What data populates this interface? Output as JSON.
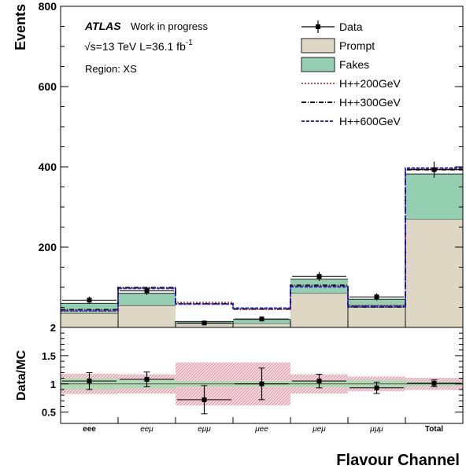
{
  "chart_data": {
    "type": "bar",
    "stacked": true,
    "categories": [
      "eee",
      "eeμ",
      "eμμ",
      "μee",
      "μeμ",
      "μμμ",
      "Total"
    ],
    "category_styles": [
      "bold",
      "italic",
      "italic",
      "italic",
      "italic",
      "italic",
      "bold"
    ],
    "xlabel": "Flavour Channel",
    "ylabel": "Events",
    "ylim": [
      0,
      800
    ],
    "yticks": [
      200,
      400,
      600,
      800
    ],
    "stack": [
      {
        "name": "Prompt",
        "color": "#ddd7c4",
        "values": [
          35,
          55,
          10,
          10,
          85,
          50,
          270
        ]
      },
      {
        "name": "Fakes",
        "color": "#94cfb1",
        "values": [
          25,
          30,
          5,
          10,
          35,
          20,
          112
        ]
      }
    ],
    "signals": [
      {
        "name": "H++200GeV",
        "color": "#cc4a4a",
        "dash": "2,2",
        "values": [
          40,
          98,
          62,
          45,
          102,
          55,
          395
        ]
      },
      {
        "name": "H++300GeV",
        "color": "#111111",
        "dash": "6,2,1,2",
        "values": [
          44,
          99,
          59,
          46,
          105,
          52,
          393
        ]
      },
      {
        "name": "H++600GeV",
        "color": "#2a2acc",
        "dash": "4,2",
        "values": [
          42,
          97,
          58,
          48,
          101,
          53,
          397
        ]
      }
    ],
    "data": {
      "name": "Data",
      "values": [
        68,
        91,
        11,
        21,
        127,
        76,
        393
      ],
      "errors": [
        9,
        10,
        4,
        5,
        11,
        9,
        20
      ]
    },
    "ratio": {
      "ylabel": "Data/MC",
      "ylim": [
        0.3,
        2.0
      ],
      "yticks": [
        0.5,
        1,
        1.5,
        2
      ],
      "ytick_labels": [
        "0.5",
        "1",
        "1.5",
        "2"
      ],
      "values": [
        1.05,
        1.08,
        0.72,
        1.0,
        1.05,
        0.93,
        1.01
      ],
      "errors": [
        0.15,
        0.13,
        0.25,
        0.28,
        0.12,
        0.1,
        0.06
      ],
      "syst_total": [
        0.18,
        0.17,
        0.38,
        0.38,
        0.17,
        0.13,
        0.11
      ],
      "syst_stat": [
        0.1,
        0.08,
        0.05,
        0.05,
        0.06,
        0.07,
        0.04
      ]
    },
    "legend": [
      "Data",
      "Prompt",
      "Fakes",
      "H++200GeV",
      "H++300GeV",
      "H++600GeV"
    ],
    "legend_position": "top-right",
    "annotations": {
      "atlas": "ATLAS",
      "status": "Work in progress",
      "energy": "√s=13 TeV  L=36.1 fb",
      "energy_sup": "-1",
      "region": "Region: XS"
    }
  }
}
